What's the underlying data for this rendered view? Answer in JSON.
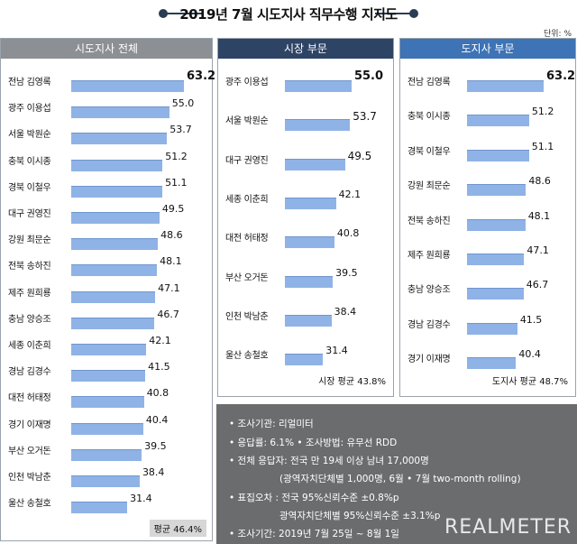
{
  "title": "2019년 7월 시도지사 직무수행 지지도",
  "unit": "단위: %",
  "chart_data": [
    {
      "type": "bar",
      "title": "시도지사 전체",
      "categories": [
        "전남 김영록",
        "광주 이용섭",
        "서울 박원순",
        "충북 이시종",
        "경북 이철우",
        "대구 권영진",
        "강원 최문순",
        "전북 송하진",
        "제주 원희룡",
        "충남 양승조",
        "세종 이춘희",
        "경남 김경수",
        "대전 허태정",
        "경기 이재명",
        "부산 오거돈",
        "인천 박남춘",
        "울산 송철호"
      ],
      "values": [
        63.2,
        55.0,
        53.7,
        51.2,
        51.1,
        49.5,
        48.6,
        48.1,
        47.1,
        46.7,
        42.1,
        41.5,
        40.8,
        40.4,
        39.5,
        38.4,
        31.4
      ],
      "value_labels": [
        "63.2",
        "55.0",
        "53.7",
        "51.2",
        "51.1",
        "49.5",
        "48.6",
        "48.1",
        "47.1",
        "46.7",
        "42.1",
        "41.5",
        "40.8",
        "40.4",
        "39.5",
        "38.4",
        "31.4"
      ],
      "average_label": "평균 46.4%"
    },
    {
      "type": "bar",
      "title": "시장 부문",
      "categories": [
        "광주 이용섭",
        "서울 박원순",
        "대구 권영진",
        "세종 이춘희",
        "대전 허태정",
        "부산 오거돈",
        "인천 박남춘",
        "울산 송철호"
      ],
      "values": [
        55.0,
        53.7,
        49.5,
        42.1,
        40.8,
        39.5,
        38.4,
        31.4
      ],
      "value_labels": [
        "55.0",
        "53.7",
        "49.5",
        "42.1",
        "40.8",
        "39.5",
        "38.4",
        "31.4"
      ],
      "average_label": "시장 평균 43.8%"
    },
    {
      "type": "bar",
      "title": "도지사 부문",
      "categories": [
        "전남 김영록",
        "충북 이시종",
        "경북 이철우",
        "강원 최문순",
        "전북 송하진",
        "제주 원희룡",
        "충남 양승조",
        "경남 김경수",
        "경기 이재명"
      ],
      "values": [
        63.2,
        51.2,
        51.1,
        48.6,
        48.1,
        47.1,
        46.7,
        41.5,
        40.4
      ],
      "value_labels": [
        "63.2",
        "51.2",
        "51.1",
        "48.6",
        "48.1",
        "47.1",
        "46.7",
        "41.5",
        "40.4"
      ],
      "average_label": "도지사 평균 48.7%"
    }
  ],
  "notes": [
    "• 조사기관: 리얼미터",
    "• 응답률: 6.1% • 조사방법: 유무선 RDD",
    "• 전체 응답자: 전국 만 19세 이상 남녀 17,000명",
    "(광역자치단체별 1,000명, 6월 • 7월 two-month rolling)",
    "• 표집오차 : 전국 95%신뢰수준 ±0.8%p",
    "광역자치단체별 95%신뢰수준 ±3.1%p",
    "• 조사기간: 2019년 7월 25일 ~ 8월 1일"
  ],
  "logo_text": "REALMETER"
}
